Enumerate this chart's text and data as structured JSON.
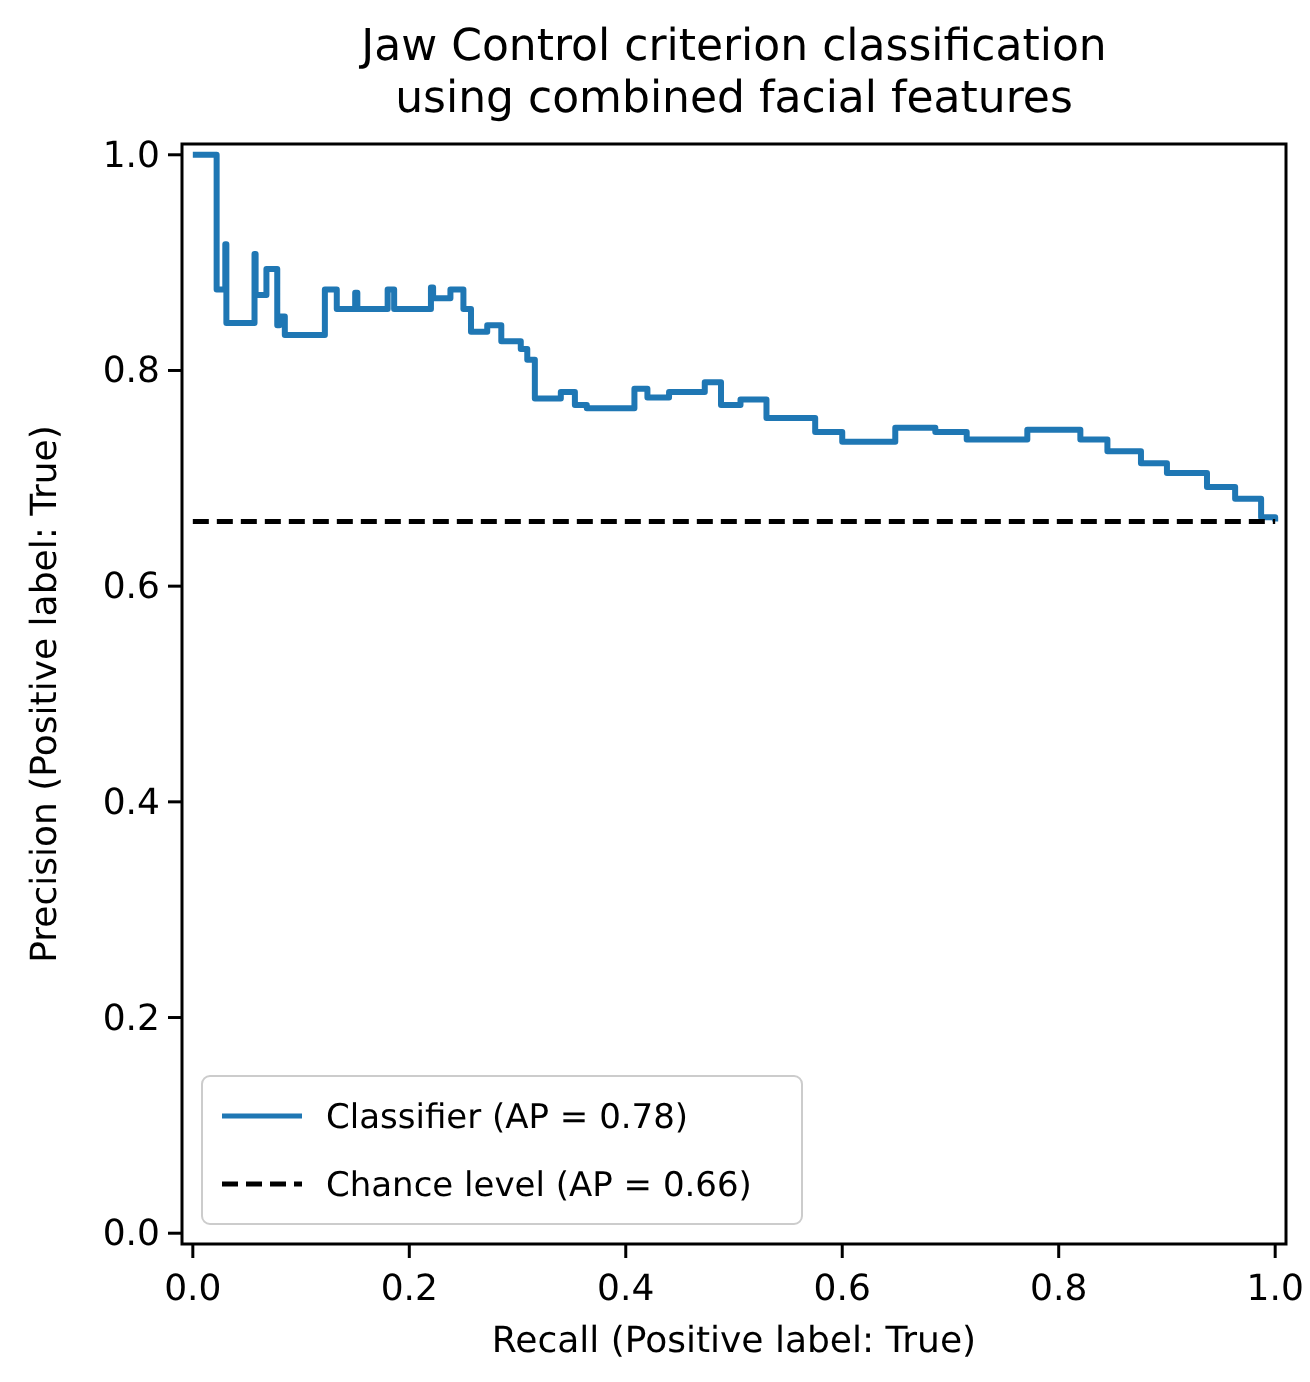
{
  "chart_data": {
    "type": "step",
    "title": "Jaw Control criterion classification\nusing combined facial features",
    "xlabel": "Recall (Positive label: True)",
    "ylabel": "Precision (Positive label: True)",
    "xlim": [
      -0.01,
      1.01
    ],
    "ylim": [
      -0.01,
      1.01
    ],
    "xticks": [
      {
        "value": 0,
        "label": "0.0"
      },
      {
        "value": 0.2,
        "label": "0.2"
      },
      {
        "value": 0.4,
        "label": "0.4"
      },
      {
        "value": 0.6,
        "label": "0.6"
      },
      {
        "value": 0.8,
        "label": "0.8"
      },
      {
        "value": 1,
        "label": "1.0"
      }
    ],
    "yticks": [
      {
        "value": 0,
        "label": "0.0"
      },
      {
        "value": 0.2,
        "label": "0.2"
      },
      {
        "value": 0.4,
        "label": "0.4"
      },
      {
        "value": 0.6,
        "label": "0.6"
      },
      {
        "value": 0.8,
        "label": "0.8"
      },
      {
        "value": 1,
        "label": "1.0"
      }
    ],
    "legend": "bottom left",
    "grid": false,
    "series": [
      {
        "name": "Classifier (AP = 0.78)",
        "color": "#1f77b4",
        "line_style": "solid",
        "x": [
          0,
          0.022,
          0.03,
          0.031,
          0.057,
          0.058,
          0.068,
          0.078,
          0.08,
          0.085,
          0.122,
          0.133,
          0.15,
          0.152,
          0.18,
          0.186,
          0.22,
          0.222,
          0.238,
          0.25,
          0.257,
          0.272,
          0.285,
          0.303,
          0.309,
          0.316,
          0.34,
          0.353,
          0.364,
          0.408,
          0.42,
          0.44,
          0.473,
          0.488,
          0.506,
          0.53,
          0.555,
          0.575,
          0.599,
          0.6,
          0.649,
          0.686,
          0.715,
          0.771,
          0.802,
          0.82,
          0.845,
          0.876,
          0.9,
          0.937,
          0.963,
          0.987,
          1.0
        ],
        "values": [
          1.0,
          0.875,
          0.917,
          0.844,
          0.908,
          0.87,
          0.894,
          0.842,
          0.85,
          0.833,
          0.875,
          0.857,
          0.872,
          0.857,
          0.875,
          0.857,
          0.877,
          0.867,
          0.875,
          0.857,
          0.836,
          0.842,
          0.827,
          0.82,
          0.81,
          0.774,
          0.78,
          0.768,
          0.765,
          0.783,
          0.775,
          0.78,
          0.789,
          0.768,
          0.773,
          0.756,
          0.756,
          0.743,
          0.743,
          0.734,
          0.747,
          0.743,
          0.736,
          0.745,
          0.745,
          0.736,
          0.725,
          0.714,
          0.705,
          0.692,
          0.681,
          0.664,
          0.66
        ]
      },
      {
        "name": "Chance level (AP = 0.66)",
        "type": "line",
        "color": "#000000",
        "line_style": "dashed",
        "x": [
          0,
          1
        ],
        "values": [
          0.66,
          0.66
        ]
      }
    ]
  }
}
